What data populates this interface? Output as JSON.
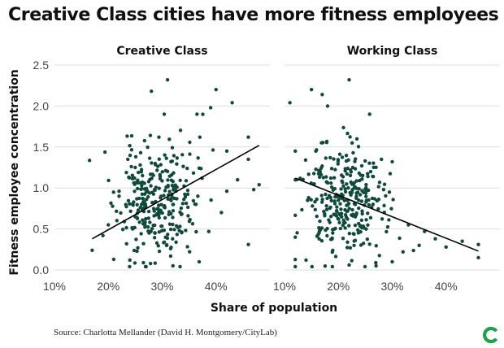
{
  "header": {
    "title": "Creative Class cities have more fitness employees"
  },
  "footer": {
    "source": "Source: Charlotta Mellander (David H. Montgomery/CityLab)"
  },
  "brand": {
    "logo_icon": "citylab-c-logo-icon",
    "color": "#1aa34a"
  },
  "colors": {
    "point": "#0f4a3a",
    "line": "#000000",
    "grid": "#dddddd",
    "axis_text": "#444444"
  },
  "chart_data": {
    "type": "scatter",
    "shared": {
      "ylabel": "Fitness employee concentration",
      "xlabel": "Share of population",
      "ylim": [
        0,
        2.5
      ],
      "yticks": [
        "0.0",
        "0.5",
        "1.0",
        "1.5",
        "2.0",
        "2.5"
      ],
      "ytick_values": [
        0,
        0.5,
        1.0,
        1.5,
        2.0,
        2.5
      ],
      "xlim": [
        10,
        50
      ],
      "xticks": [
        "10%",
        "20%",
        "30%",
        "40%"
      ],
      "xtick_values": [
        10,
        20,
        30,
        40
      ],
      "grid": "horizontal"
    },
    "panels": [
      {
        "title": "Creative Class",
        "trend": {
          "x": [
            17,
            48
          ],
          "y": [
            0.38,
            1.52
          ]
        },
        "cloud": {
          "seed": 11,
          "n": 300,
          "x_mean": 29,
          "x_sd": 3.6,
          "y_mean": 0.82,
          "y_sd": 0.36
        },
        "points": [
          {
            "x": 17,
            "y": 0.24
          },
          {
            "x": 28,
            "y": 2.18
          },
          {
            "x": 31,
            "y": 2.32
          },
          {
            "x": 40,
            "y": 2.2
          },
          {
            "x": 43,
            "y": 2.04
          },
          {
            "x": 46,
            "y": 1.62
          },
          {
            "x": 46,
            "y": 1.35
          },
          {
            "x": 48,
            "y": 1.04
          },
          {
            "x": 47,
            "y": 0.98
          },
          {
            "x": 42,
            "y": 0.96
          },
          {
            "x": 46,
            "y": 0.31
          },
          {
            "x": 39,
            "y": 1.98
          },
          {
            "x": 44,
            "y": 1.1
          },
          {
            "x": 42,
            "y": 1.45
          },
          {
            "x": 41,
            "y": 0.7
          },
          {
            "x": 20,
            "y": 0.55
          },
          {
            "x": 19,
            "y": 0.42
          },
          {
            "x": 21,
            "y": 0.13
          },
          {
            "x": 24,
            "y": 0.12
          },
          {
            "x": 32,
            "y": 0.05
          },
          {
            "x": 26,
            "y": 1.43
          },
          {
            "x": 25,
            "y": 1.25
          },
          {
            "x": 22,
            "y": 0.9
          },
          {
            "x": 37,
            "y": 1.62
          }
        ]
      },
      {
        "title": "Working Class",
        "trend": {
          "x": [
            12,
            46
          ],
          "y": [
            1.12,
            0.23
          ]
        },
        "cloud": {
          "seed": 23,
          "n": 300,
          "x_mean": 21,
          "x_sd": 3.8,
          "y_mean": 0.82,
          "y_sd": 0.36
        },
        "points": [
          {
            "x": 11,
            "y": 2.04
          },
          {
            "x": 15,
            "y": 2.2
          },
          {
            "x": 22,
            "y": 2.32
          },
          {
            "x": 17,
            "y": 2.14
          },
          {
            "x": 18,
            "y": 2.0
          },
          {
            "x": 12,
            "y": 1.45
          },
          {
            "x": 12,
            "y": 1.1
          },
          {
            "x": 12,
            "y": 0.4
          },
          {
            "x": 14,
            "y": 0.12
          },
          {
            "x": 46,
            "y": 0.31
          },
          {
            "x": 46,
            "y": 0.15
          },
          {
            "x": 43,
            "y": 0.35
          },
          {
            "x": 40,
            "y": 0.28
          },
          {
            "x": 38,
            "y": 0.38
          },
          {
            "x": 36,
            "y": 0.47
          },
          {
            "x": 35,
            "y": 0.3
          },
          {
            "x": 33,
            "y": 0.55
          },
          {
            "x": 32,
            "y": 0.22
          },
          {
            "x": 30,
            "y": 1.32
          },
          {
            "x": 28,
            "y": 1.35
          },
          {
            "x": 30,
            "y": 0.1
          },
          {
            "x": 27,
            "y": 0.05
          },
          {
            "x": 22,
            "y": 0.06
          },
          {
            "x": 26,
            "y": 1.2
          }
        ]
      }
    ]
  }
}
